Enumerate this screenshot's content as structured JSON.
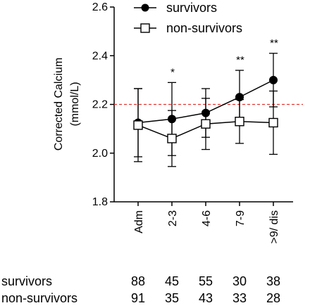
{
  "chart_data": {
    "type": "line",
    "categories": [
      "Adm",
      "2-3",
      "4-6",
      "7-9",
      ">9/ dis"
    ],
    "ylabel_line1": "Corrected Calcium",
    "ylabel_line2": "(mmol/L)",
    "ylim": [
      1.8,
      2.6
    ],
    "yticks": [
      "1.8",
      "2.0",
      "2.2",
      "2.4",
      "2.6"
    ],
    "reference_line": {
      "y": 2.2,
      "color": "#e3342f",
      "style": "dashed"
    },
    "series": [
      {
        "name": "survivors",
        "marker": "filled-circle",
        "values": [
          2.125,
          2.14,
          2.165,
          2.23,
          2.3
        ],
        "error": [
          0.14,
          0.15,
          0.1,
          0.11,
          0.11
        ]
      },
      {
        "name": "non-survivors",
        "marker": "open-square",
        "values": [
          2.115,
          2.06,
          2.12,
          2.13,
          2.125
        ],
        "error": [
          0.15,
          0.115,
          0.105,
          0.09,
          0.13
        ]
      }
    ],
    "annotations": [
      "",
      "*",
      "",
      "**",
      "**"
    ],
    "legend_position": "top"
  },
  "counts": {
    "rows": [
      {
        "label": "survivors",
        "values": [
          "88",
          "45",
          "55",
          "30",
          "38"
        ]
      },
      {
        "label": "non-survivors",
        "values": [
          "91",
          "35",
          "43",
          "33",
          "28"
        ]
      }
    ]
  }
}
